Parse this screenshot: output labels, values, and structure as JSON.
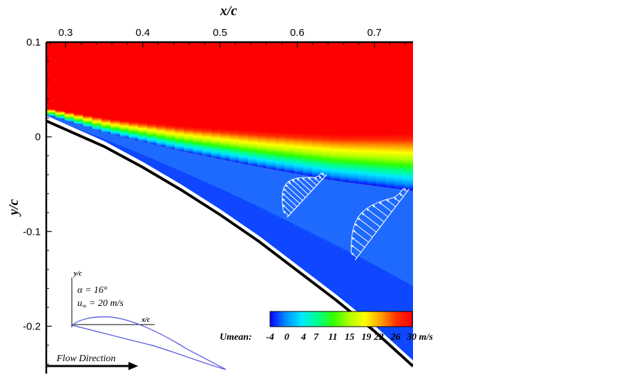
{
  "chart_data": {
    "type": "heatmap",
    "title": "",
    "xlabel": "x/c",
    "ylabel": "y/c",
    "xlim": [
      0.275,
      0.75
    ],
    "ylim": [
      -0.25,
      0.1
    ],
    "x_axis_position": "top",
    "x_ticks": [
      0.3,
      0.4,
      0.5,
      0.6,
      0.7
    ],
    "x_tick_labels": [
      "0.3",
      "0.4",
      "0.5",
      "0.6",
      "0.7"
    ],
    "y_ticks": [
      0.1,
      0.0,
      -0.1,
      -0.2
    ],
    "y_tick_labels": [
      "0.1",
      "0",
      "-0.1",
      "-0.2"
    ],
    "grid": false,
    "colorbar": {
      "label": "Umean:",
      "unit": "m/s",
      "range": [
        -4,
        30
      ],
      "ticks": [
        -4,
        0,
        4,
        7,
        11,
        15,
        19,
        22,
        26,
        30
      ],
      "tick_labels": [
        "-4",
        "0",
        "4",
        "7",
        "11",
        "15",
        "19",
        "22",
        "26",
        "30 m/s"
      ],
      "colors": [
        "#0a00ff",
        "#0090ff",
        "#00e8ff",
        "#00ff90",
        "#30ff00",
        "#b0ff00",
        "#ffff00",
        "#ffa000",
        "#ff3000",
        "#ff0000"
      ]
    },
    "airfoil_surface": {
      "x": [
        0.275,
        0.3,
        0.35,
        0.4,
        0.45,
        0.5,
        0.55,
        0.6,
        0.65,
        0.7,
        0.75
      ],
      "y": [
        0.019,
        0.01,
        -0.008,
        -0.03,
        -0.054,
        -0.08,
        -0.108,
        -0.139,
        -0.17,
        -0.203,
        -0.24
      ]
    },
    "shear_layer_center": {
      "x": [
        0.275,
        0.35,
        0.45,
        0.55,
        0.65,
        0.75
      ],
      "y": [
        0.027,
        0.012,
        -0.002,
        -0.013,
        -0.022,
        -0.027
      ]
    },
    "shear_layer_thickness": {
      "x": [
        0.275,
        0.75
      ],
      "y": [
        0.003,
        0.03
      ]
    },
    "velocity_profiles": [
      {
        "station": "profile 1",
        "base_x": [
          0.587,
          0.638
        ],
        "base_y": [
          -0.085,
          -0.04
        ],
        "direction": "reverse"
      },
      {
        "station": "profile 2",
        "base_x": [
          0.675,
          0.745
        ],
        "base_y": [
          -0.13,
          -0.055
        ],
        "direction": "reverse"
      }
    ]
  },
  "inset": {
    "ylabel": "y/c",
    "xlabel": "x/c",
    "alpha_text": "α = 16°",
    "u_label": "u",
    "u_subscript": "∞",
    "u_value": " = 20 m/s",
    "flow_label": "Flow Direction"
  },
  "colors": {
    "airfoil": "#000000",
    "vectors": "#ffffff",
    "inset_airfoil": "#4a4adc"
  }
}
